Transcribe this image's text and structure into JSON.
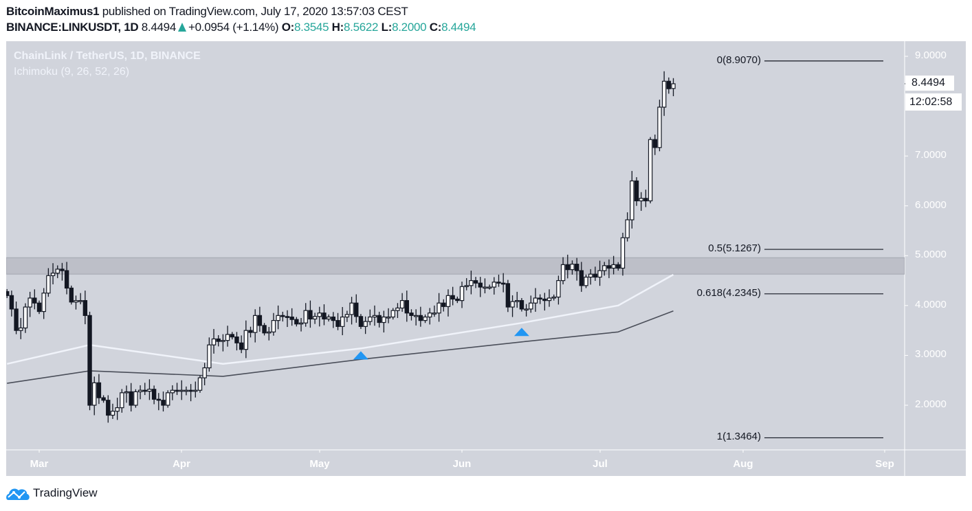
{
  "header": {
    "author": "BitcoinMaximus1",
    "published": "published on TradingView.com, July 17, 2020 13:57:03 CEST",
    "symbol": "BINANCE:LINKUSDT, 1D",
    "last": "8.4494",
    "change": "+0.0954 (+1.14%)",
    "o_label": "O:",
    "o": "8.3545",
    "h_label": "H:",
    "h": "8.5622",
    "l_label": "L:",
    "l": "8.2000",
    "c_label": "C:",
    "c": "8.4494"
  },
  "legend": {
    "title": "ChainLink / TetherUS, 1D, BINANCE",
    "indicator": "Ichimoku (9, 26, 52, 26)"
  },
  "price_axis": {
    "ticks": [
      "9.0000",
      "7.0000",
      "6.0000",
      "5.0000",
      "4.0000",
      "3.0000",
      "2.0000"
    ],
    "current_price": "8.4494",
    "countdown": "12:02:58"
  },
  "time_axis": {
    "ticks": [
      "Mar",
      "Apr",
      "May",
      "Jun",
      "Jul",
      "Aug",
      "Sep"
    ]
  },
  "footer": {
    "brand": "TradingView"
  },
  "colors": {
    "background": "#d1d4dc",
    "up_candle": "#ffffff",
    "down_candle": "#131722",
    "arrow": "#2196f3",
    "change": "#26a69a",
    "zone": "#bdbfc8"
  },
  "chart_data": {
    "type": "candlestick",
    "title": "ChainLink / TetherUS, 1D, BINANCE",
    "first_date": "2020-02-23",
    "last_date": "2020-07-17",
    "ylim": [
      1.0,
      9.4
    ],
    "last_candle": {
      "open": 8.3545,
      "high": 8.5622,
      "low": 8.2,
      "close": 8.4494
    },
    "close": [
      4.2,
      3.93,
      3.5,
      3.55,
      3.97,
      4.15,
      4.05,
      3.88,
      4.25,
      4.6,
      4.65,
      4.73,
      4.7,
      4.35,
      4.07,
      4.1,
      4.1,
      3.8,
      2.0,
      2.45,
      2.15,
      2.1,
      1.8,
      1.88,
      1.95,
      2.25,
      2.27,
      2.0,
      2.27,
      2.3,
      2.28,
      2.32,
      2.12,
      2.1,
      2.0,
      2.25,
      2.3,
      2.28,
      2.3,
      2.3,
      2.28,
      2.3,
      2.55,
      2.75,
      3.21,
      3.33,
      3.28,
      3.3,
      3.42,
      3.37,
      3.25,
      3.12,
      3.5,
      3.46,
      3.8,
      3.6,
      3.45,
      3.47,
      3.7,
      3.8,
      3.78,
      3.77,
      3.72,
      3.63,
      3.65,
      3.9,
      3.73,
      3.78,
      3.85,
      3.73,
      3.77,
      3.7,
      3.58,
      3.77,
      3.82,
      4.05,
      3.78,
      3.58,
      3.68,
      3.77,
      3.8,
      3.66,
      3.77,
      3.77,
      3.9,
      3.95,
      4.1,
      3.85,
      3.8,
      3.8,
      3.7,
      3.77,
      3.85,
      3.85,
      4.05,
      3.98,
      4.2,
      4.13,
      4.1,
      4.38,
      4.4,
      4.5,
      4.45,
      4.37,
      4.37,
      4.37,
      4.47,
      4.45,
      4.44,
      3.97,
      4.08,
      4.1,
      3.93,
      3.93,
      4.05,
      4.15,
      4.13,
      4.1,
      4.15,
      4.17,
      4.5,
      4.82,
      4.72,
      4.83,
      4.7,
      4.4,
      4.57,
      4.63,
      4.57,
      4.7,
      4.8,
      4.75,
      4.82,
      4.75,
      5.36,
      5.72,
      6.5,
      6.1,
      6.15,
      6.1,
      7.33,
      7.17,
      7.98,
      8.5,
      8.35,
      8.4494
    ],
    "moving_averages": [
      {
        "color": "#f0f3fa",
        "points": [
          [
            "2020-02-23",
            2.83
          ],
          [
            "2020-03-12",
            3.21
          ],
          [
            "2020-04-10",
            2.83
          ],
          [
            "2020-05-10",
            3.14
          ],
          [
            "2020-06-14",
            3.65
          ],
          [
            "2020-07-05",
            4.0
          ],
          [
            "2020-07-17",
            4.62
          ]
        ]
      },
      {
        "color": "#4a4e59",
        "points": [
          [
            "2020-02-23",
            2.44
          ],
          [
            "2020-03-12",
            2.69
          ],
          [
            "2020-04-10",
            2.58
          ],
          [
            "2020-05-10",
            2.92
          ],
          [
            "2020-06-14",
            3.27
          ],
          [
            "2020-07-05",
            3.47
          ],
          [
            "2020-07-17",
            3.89
          ]
        ]
      }
    ],
    "resistance_zone": [
      4.63,
      4.96
    ],
    "fib_levels": [
      {
        "label": "0(8.9070)",
        "value": 8.907
      },
      {
        "label": "0.5(5.1267)",
        "value": 5.1267
      },
      {
        "label": "0.618(4.2345)",
        "value": 4.2345
      },
      {
        "label": "1(1.3464)",
        "value": 1.3464
      }
    ],
    "arrows": [
      {
        "date": "2020-05-10",
        "value": 3.0
      },
      {
        "date": "2020-06-14",
        "value": 3.47
      }
    ]
  }
}
